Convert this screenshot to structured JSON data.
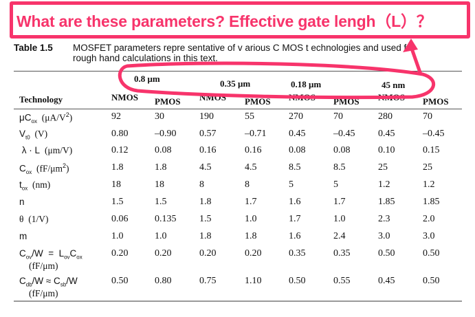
{
  "annotation": {
    "text": "What are these parameters?   Effective gate lengh（L）？",
    "color": "#f7346b"
  },
  "caption": {
    "number": "Table  1.5",
    "line1": "MOSFET  parameters repre sentative of v arious C MOS t echnologies and used  for",
    "line2": "rough hand calculations in this text."
  },
  "table": {
    "tech_header": "Technology",
    "nodes": [
      "0.8 μm",
      "0.35 μm",
      "0.18 μm",
      "45 nm"
    ],
    "types": [
      "NMOS",
      "PMOS",
      "NMOS",
      "PMOS",
      "NMOS",
      "PMOS",
      "NMOS",
      "PMOS"
    ],
    "rows": [
      {
        "label": [
          [
            "μC",
            ""
          ],
          [
            "ox",
            "sub"
          ],
          [
            "  (μA/V",
            "s"
          ],
          [
            "2",
            "sup"
          ],
          [
            ")",
            "s"
          ]
        ],
        "values": [
          "92",
          "30",
          "190",
          "55",
          "270",
          "70",
          "280",
          "70"
        ]
      },
      {
        "label": [
          [
            "V",
            ""
          ],
          [
            "t0",
            "sub"
          ],
          [
            "  (V)",
            "s"
          ]
        ],
        "values": [
          "0.80",
          "–0.90",
          "0.57",
          "–0.71",
          "0.45",
          "–0.45",
          "0.45",
          "–0.45"
        ]
      },
      {
        "label": [
          [
            " λ · L  ",
            ""
          ],
          [
            "(μm/V)",
            "s"
          ]
        ],
        "values": [
          "0.12",
          "0.08",
          "0.16",
          "0.16",
          "0.08",
          "0.08",
          "0.10",
          "0.15"
        ]
      },
      {
        "label": [
          [
            "C",
            ""
          ],
          [
            "ox",
            "sub"
          ],
          [
            "  (fF/μm",
            "s"
          ],
          [
            "2",
            "sup"
          ],
          [
            ")",
            "s"
          ]
        ],
        "values": [
          "1.8",
          "1.8",
          "4.5",
          "4.5",
          "8.5",
          "8.5",
          "25",
          "25"
        ]
      },
      {
        "label": [
          [
            "t",
            ""
          ],
          [
            "ox",
            "sub"
          ],
          [
            "  (nm)",
            "s"
          ]
        ],
        "values": [
          "18",
          "18",
          "8",
          "8",
          "5",
          "5",
          "1.2",
          "1.2"
        ]
      },
      {
        "label": [
          [
            "n",
            ""
          ]
        ],
        "values": [
          "1.5",
          "1.5",
          "1.8",
          "1.7",
          "1.6",
          "1.7",
          "1.85",
          "1.85"
        ]
      },
      {
        "label": [
          [
            "θ  (1/V)",
            "s"
          ]
        ],
        "values": [
          "0.06",
          "0.135",
          "1.5",
          "1.0",
          "1.7",
          "1.0",
          "2.3",
          "2.0"
        ]
      },
      {
        "label": [
          [
            "m",
            ""
          ]
        ],
        "values": [
          "1.0",
          "1.0",
          "1.8",
          "1.8",
          "1.6",
          "2.4",
          "3.0",
          "3.0"
        ]
      },
      {
        "label": [
          [
            "C",
            ""
          ],
          [
            "ov",
            "sub"
          ],
          [
            "/W  =  L",
            ""
          ],
          [
            "ov",
            "sub"
          ],
          [
            "C",
            ""
          ],
          [
            "ox",
            "sub"
          ],
          [
            "(fF/μm)",
            "u2"
          ]
        ],
        "values": [
          "0.20",
          "0.20",
          "0.20",
          "0.20",
          "0.35",
          "0.35",
          "0.50",
          "0.50"
        ]
      },
      {
        "label": [
          [
            "C",
            ""
          ],
          [
            "db",
            "sub"
          ],
          [
            "/W ≈ C",
            ""
          ],
          [
            "sb",
            "sub"
          ],
          [
            "/W",
            ""
          ],
          [
            "(fF/μm)",
            "u2"
          ]
        ],
        "values": [
          "0.50",
          "0.80",
          "0.75",
          "1.10",
          "0.50",
          "0.55",
          "0.45",
          "0.50"
        ]
      }
    ]
  }
}
